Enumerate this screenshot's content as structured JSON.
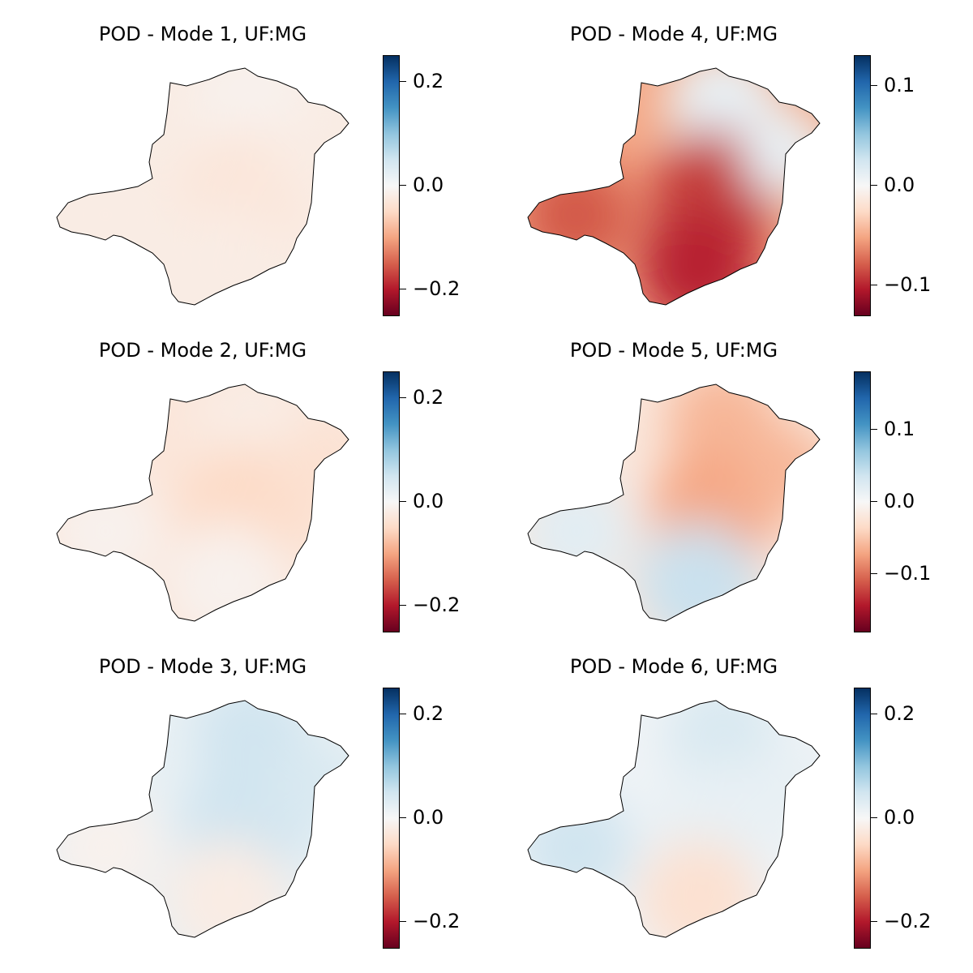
{
  "colormap": "RdBu",
  "colormap_stops": [
    "#67001f",
    "#b2182b",
    "#d6604d",
    "#f4a582",
    "#fddbc7",
    "#f7f7f7",
    "#d1e5f0",
    "#92c5de",
    "#4393c3",
    "#2166ac",
    "#053061"
  ],
  "region_outline_color": "#000000",
  "panels": [
    {
      "title": "POD - Mode 1, UF:MG",
      "colorbar": {
        "min": -0.25,
        "max": 0.25,
        "ticks": [
          0.2,
          0.0,
          -0.2
        ],
        "tick_labels": [
          "0.2",
          "0.0",
          "−0.2"
        ]
      },
      "fill": {
        "base": -0.02,
        "north": -0.01,
        "center": -0.03,
        "south": -0.02,
        "west": -0.02,
        "east": -0.02
      }
    },
    {
      "title": "POD - Mode 4, UF:MG",
      "colorbar": {
        "min": -0.13,
        "max": 0.13,
        "ticks": [
          0.1,
          0.0,
          -0.1
        ],
        "tick_labels": [
          "0.1",
          "0.0",
          "−0.1"
        ]
      },
      "fill": {
        "base": -0.05,
        "north": 0.01,
        "center": -0.09,
        "south": -0.1,
        "west": -0.08,
        "east": 0.01
      }
    },
    {
      "title": "POD - Mode 2, UF:MG",
      "colorbar": {
        "min": -0.25,
        "max": 0.25,
        "ticks": [
          0.2,
          0.0,
          -0.2
        ],
        "tick_labels": [
          "0.2",
          "0.0",
          "−0.2"
        ]
      },
      "fill": {
        "base": -0.03,
        "north": -0.02,
        "center": -0.05,
        "south": -0.01,
        "west": -0.01,
        "east": -0.04
      }
    },
    {
      "title": "POD - Mode 5, UF:MG",
      "colorbar": {
        "min": -0.18,
        "max": 0.18,
        "ticks": [
          0.1,
          0.0,
          -0.1
        ],
        "tick_labels": [
          "0.1",
          "0.0",
          "−0.1"
        ]
      },
      "fill": {
        "base": -0.02,
        "north": -0.06,
        "center": -0.07,
        "south": 0.04,
        "west": 0.02,
        "east": -0.06
      }
    },
    {
      "title": "POD - Mode 3, UF:MG",
      "colorbar": {
        "min": -0.25,
        "max": 0.25,
        "ticks": [
          0.2,
          0.0,
          -0.2
        ],
        "tick_labels": [
          "0.2",
          "0.0",
          "−0.2"
        ]
      },
      "fill": {
        "base": 0.02,
        "north": 0.05,
        "center": 0.05,
        "south": -0.02,
        "west": -0.01,
        "east": 0.04
      }
    },
    {
      "title": "POD - Mode 6, UF:MG",
      "colorbar": {
        "min": -0.25,
        "max": 0.25,
        "ticks": [
          0.2,
          0.0,
          -0.2
        ],
        "tick_labels": [
          "0.2",
          "0.0",
          "−0.2"
        ]
      },
      "fill": {
        "base": 0.01,
        "north": 0.04,
        "center": 0.02,
        "south": -0.04,
        "west": 0.05,
        "east": 0.02
      }
    }
  ]
}
